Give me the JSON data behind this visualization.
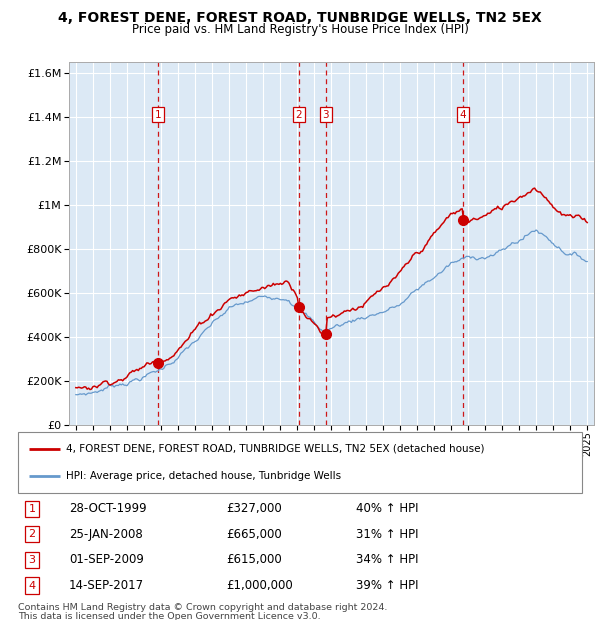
{
  "title": "4, FOREST DENE, FOREST ROAD, TUNBRIDGE WELLS, TN2 5EX",
  "subtitle": "Price paid vs. HM Land Registry's House Price Index (HPI)",
  "bg_color": "#dce9f5",
  "grid_color": "#ffffff",
  "hpi_line_color": "#6699cc",
  "price_line_color": "#cc0000",
  "transactions": [
    {
      "num": 1,
      "date": "28-OCT-1999",
      "price": 327000,
      "pct": "40%",
      "x_year": 1999.83
    },
    {
      "num": 2,
      "date": "25-JAN-2008",
      "price": 665000,
      "pct": "31%",
      "x_year": 2008.07
    },
    {
      "num": 3,
      "date": "01-SEP-2009",
      "price": 615000,
      "pct": "34%",
      "x_year": 2009.67
    },
    {
      "num": 4,
      "date": "14-SEP-2017",
      "price": 1000000,
      "pct": "39%",
      "x_year": 2017.71
    }
  ],
  "legend_label_price": "4, FOREST DENE, FOREST ROAD, TUNBRIDGE WELLS, TN2 5EX (detached house)",
  "legend_label_hpi": "HPI: Average price, detached house, Tunbridge Wells",
  "footer1": "Contains HM Land Registry data © Crown copyright and database right 2024.",
  "footer2": "This data is licensed under the Open Government Licence v3.0.",
  "ylim": [
    0,
    1650000
  ],
  "xlim_start": 1994.6,
  "xlim_end": 2025.4,
  "yticks": [
    0,
    200000,
    400000,
    600000,
    800000,
    1000000,
    1200000,
    1400000,
    1600000
  ],
  "xticks": [
    1995,
    1996,
    1997,
    1998,
    1999,
    2000,
    2001,
    2002,
    2003,
    2004,
    2005,
    2006,
    2007,
    2008,
    2009,
    2010,
    2011,
    2012,
    2013,
    2014,
    2015,
    2016,
    2017,
    2018,
    2019,
    2020,
    2021,
    2022,
    2023,
    2024,
    2025
  ]
}
